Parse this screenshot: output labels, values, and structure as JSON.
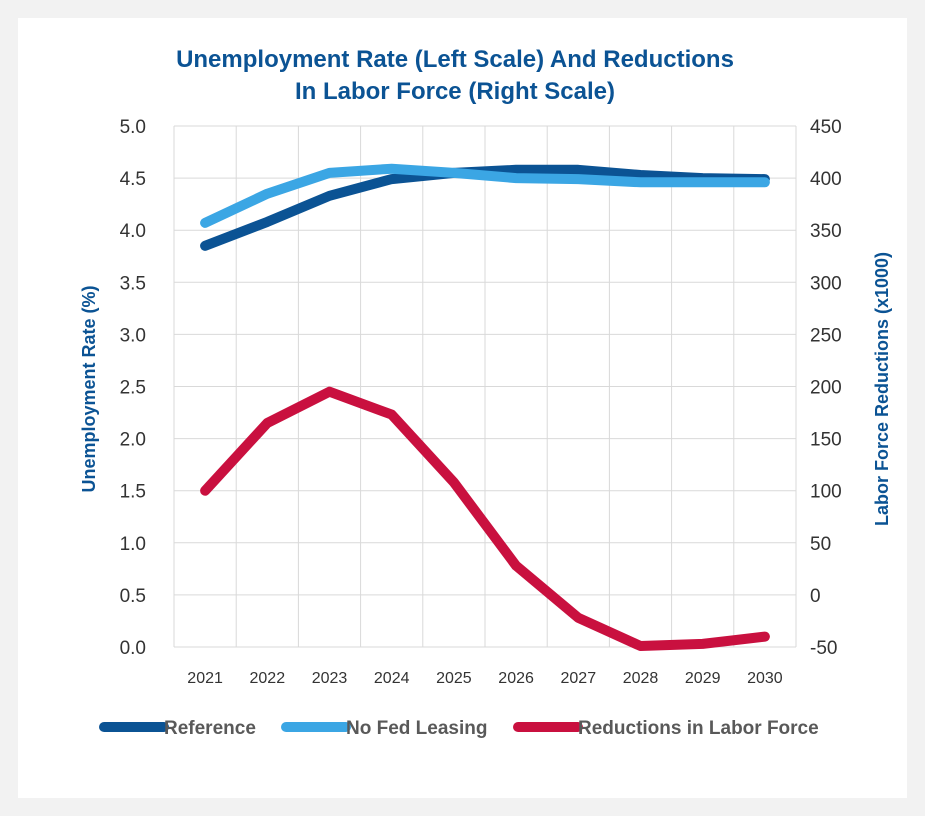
{
  "chart_data": {
    "type": "line",
    "title_lines": [
      "Unemployment Rate (Left Scale) And Reductions",
      "In Labor Force (Right Scale)"
    ],
    "categories": [
      "2021",
      "2022",
      "2023",
      "2024",
      "2025",
      "2026",
      "2027",
      "2028",
      "2029",
      "2030"
    ],
    "left_axis": {
      "label": "Unemployment Rate (%)",
      "ylim": [
        0,
        5
      ],
      "ticks": [
        "0.0",
        "0.5",
        "1.0",
        "1.5",
        "2.0",
        "2.5",
        "3.0",
        "3.5",
        "4.0",
        "4.5",
        "5.0"
      ]
    },
    "right_axis": {
      "label": "Labor Force Reductions (x1000)",
      "ylim": [
        -50,
        450
      ],
      "ticks": [
        "-50",
        "0",
        "50",
        "100",
        "150",
        "200",
        "250",
        "300",
        "350",
        "400",
        "450"
      ]
    },
    "grid": true,
    "legend_position": "bottom",
    "series": [
      {
        "name": "Reference",
        "axis": "left",
        "color": "#0b5394",
        "values": [
          3.85,
          4.08,
          4.33,
          4.49,
          4.55,
          4.58,
          4.58,
          4.53,
          4.5,
          4.49
        ]
      },
      {
        "name": "No Fed Leasing",
        "axis": "left",
        "color": "#3ba6e4",
        "values": [
          4.07,
          4.35,
          4.55,
          4.59,
          4.55,
          4.5,
          4.49,
          4.46,
          4.46,
          4.46
        ]
      },
      {
        "name": "Reductions in Labor Force",
        "axis": "right",
        "color": "#c9103f",
        "values": [
          100,
          165,
          195,
          173,
          108,
          28,
          -22,
          -49,
          -47,
          -40
        ]
      }
    ]
  }
}
